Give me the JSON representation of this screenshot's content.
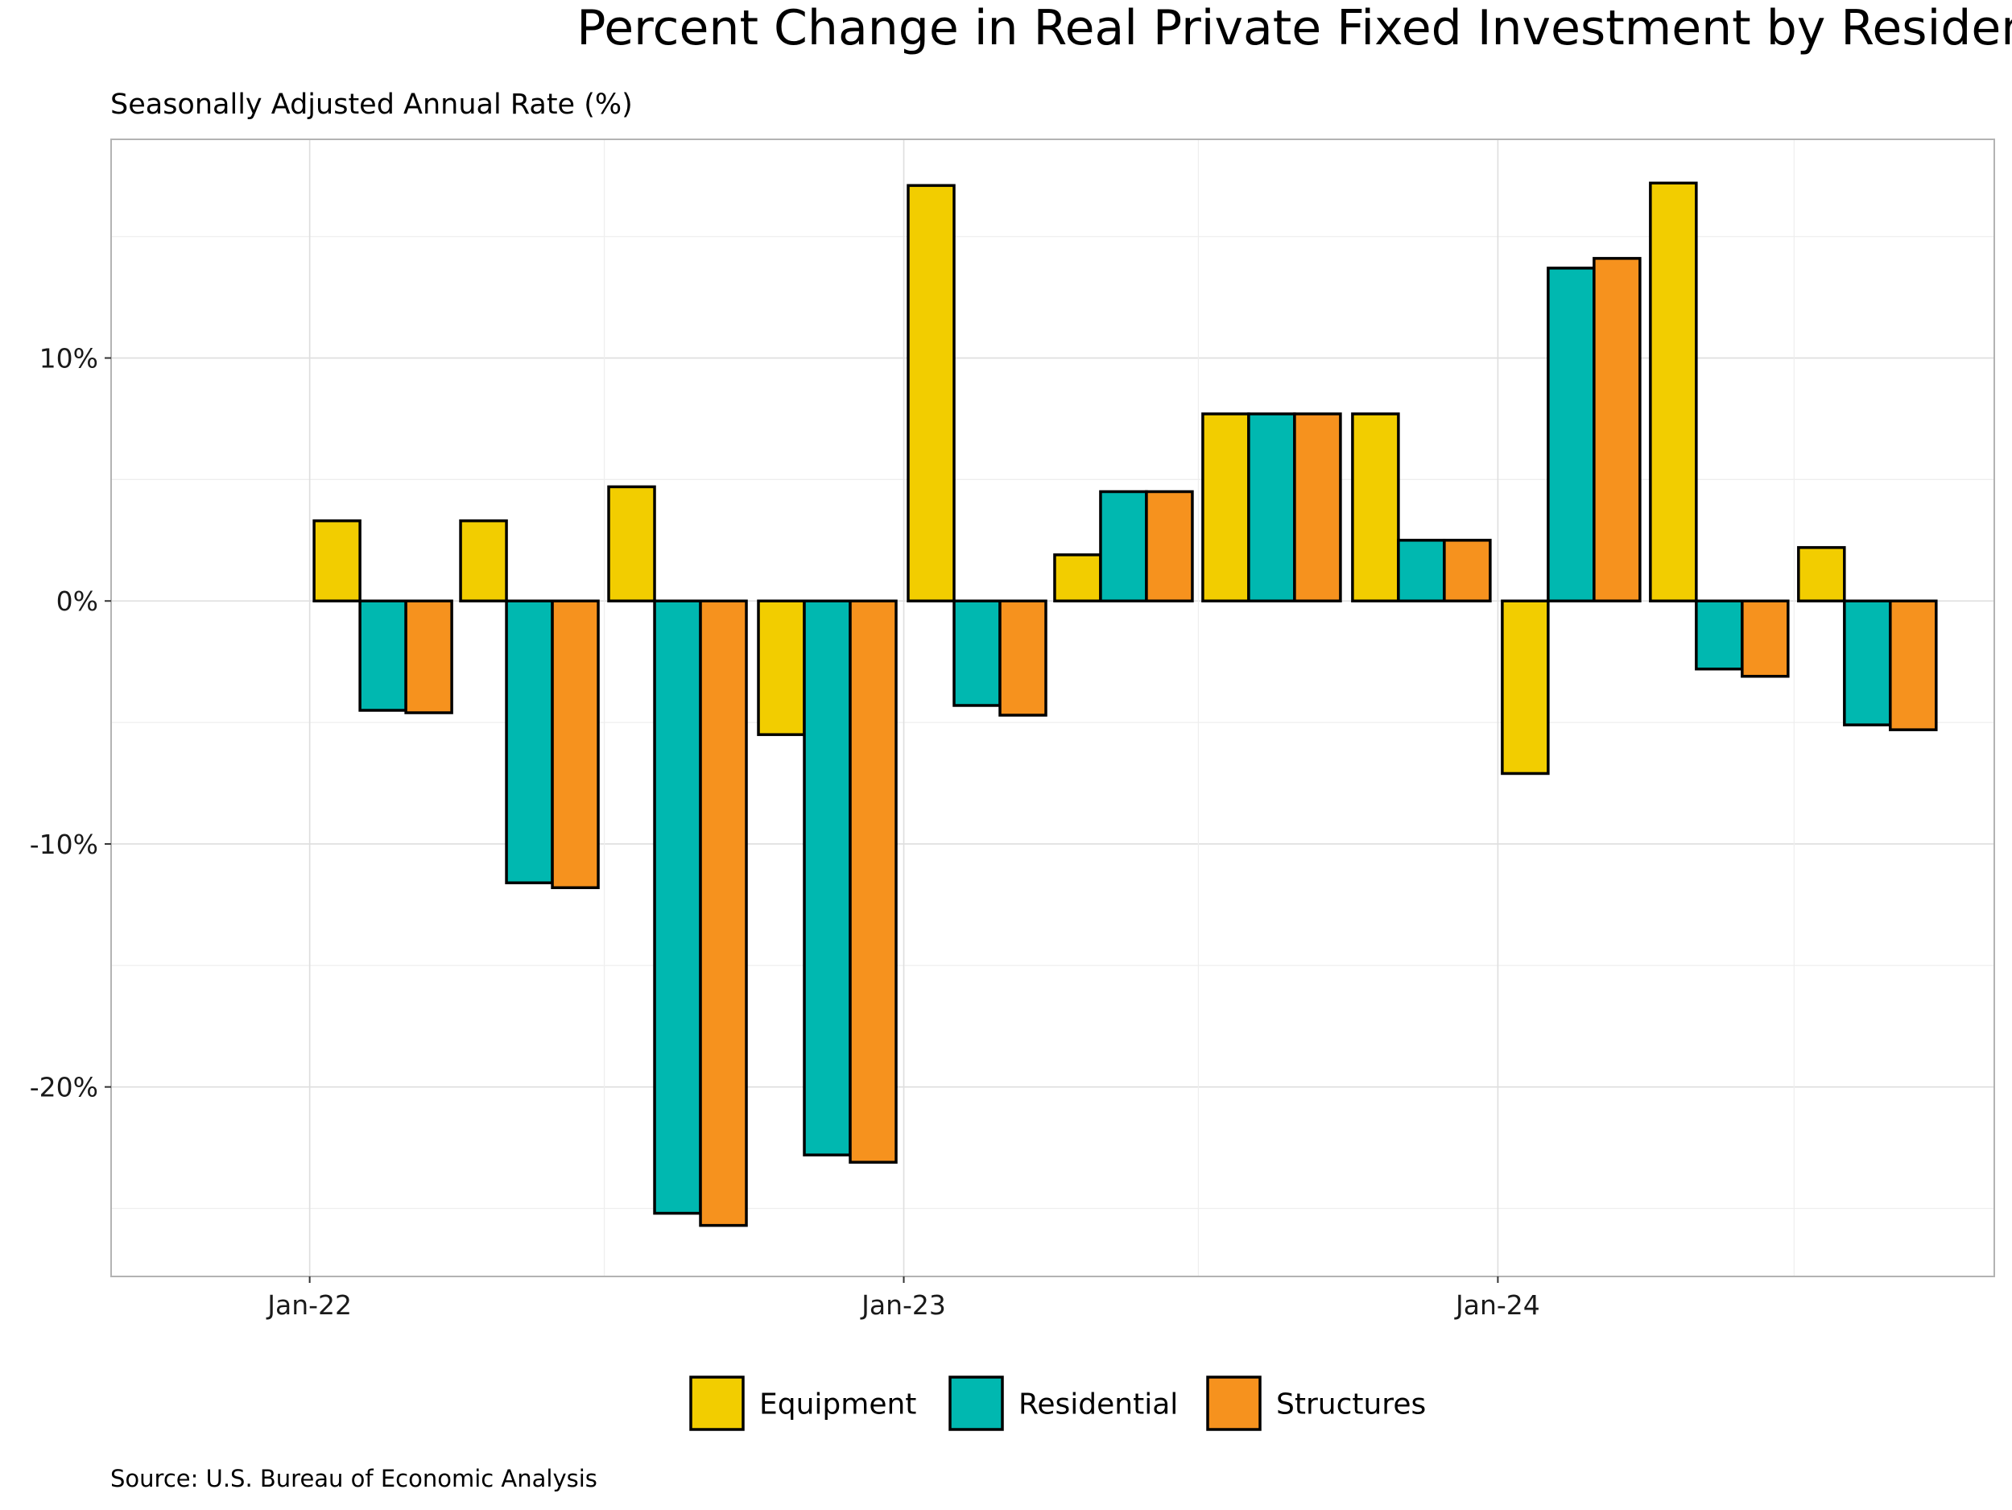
{
  "chart_data": {
    "type": "bar",
    "title": "Percent Change in Real Private Fixed Investment by Residential Type",
    "subtitle": "Seasonally Adjusted Annual Rate (%)",
    "source": "Source: U.S. Bureau of Economic Analysis",
    "xlabel": "",
    "ylabel": "",
    "categories": [
      "2022-01",
      "2022-04",
      "2022-07",
      "2022-10",
      "2023-01",
      "2023-04",
      "2023-07",
      "2023-10",
      "2024-01",
      "2024-04",
      "2024-07"
    ],
    "x_ticks": [
      {
        "date": "2022-01",
        "label": "Jan-22"
      },
      {
        "date": "2023-01",
        "label": "Jan-23"
      },
      {
        "date": "2024-01",
        "label": "Jan-24"
      }
    ],
    "y_ticks": [
      {
        "value": 10,
        "label": "10%"
      },
      {
        "value": 0,
        "label": "0%"
      },
      {
        "value": -10,
        "label": "-10%"
      },
      {
        "value": -20,
        "label": "-20%"
      }
    ],
    "ylim": [
      -27.8,
      19.0
    ],
    "grid": true,
    "legend_position": "bottom",
    "series": [
      {
        "name": "Equipment",
        "color": "#F2CD00",
        "values": [
          3.3,
          3.3,
          4.7,
          -5.5,
          17.1,
          1.9,
          7.7,
          7.7,
          -7.1,
          17.2,
          2.2
        ]
      },
      {
        "name": "Residential",
        "color": "#00B8B0",
        "values": [
          -4.5,
          -11.6,
          -25.2,
          -22.8,
          -4.3,
          4.5,
          7.7,
          2.5,
          13.7,
          -2.8,
          -5.1
        ]
      },
      {
        "name": "Structures",
        "color": "#F6921E",
        "values": [
          -4.6,
          -11.8,
          -25.7,
          -23.1,
          -4.7,
          4.5,
          7.7,
          2.5,
          14.1,
          -3.1,
          -5.3
        ]
      }
    ]
  }
}
